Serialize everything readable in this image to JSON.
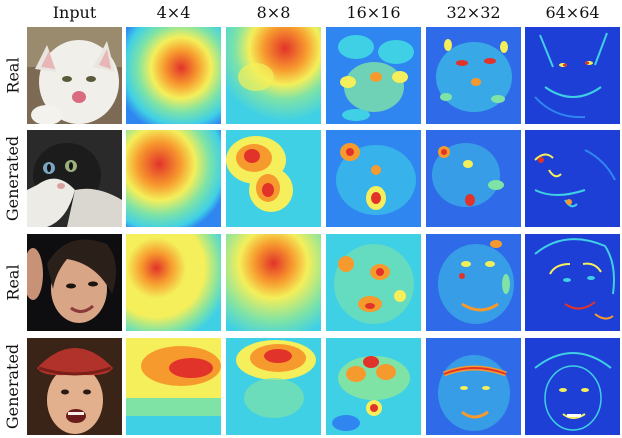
{
  "columns": [
    "Input",
    "4×4",
    "8×8",
    "16×16",
    "32×32",
    "64×64"
  ],
  "rows": [
    {
      "label": "Real",
      "subject": "white cat"
    },
    {
      "label": "Generated",
      "subject": "black and white kitten"
    },
    {
      "label": "Real",
      "subject": "person with dark hair"
    },
    {
      "label": "Generated",
      "subject": "smiling person with red hat"
    }
  ],
  "heatmap_palette": [
    "#1e3fd6",
    "#2f86f0",
    "#3fd0e6",
    "#7fe3a6",
    "#f4ef5a",
    "#f79a2e",
    "#e2332a"
  ]
}
